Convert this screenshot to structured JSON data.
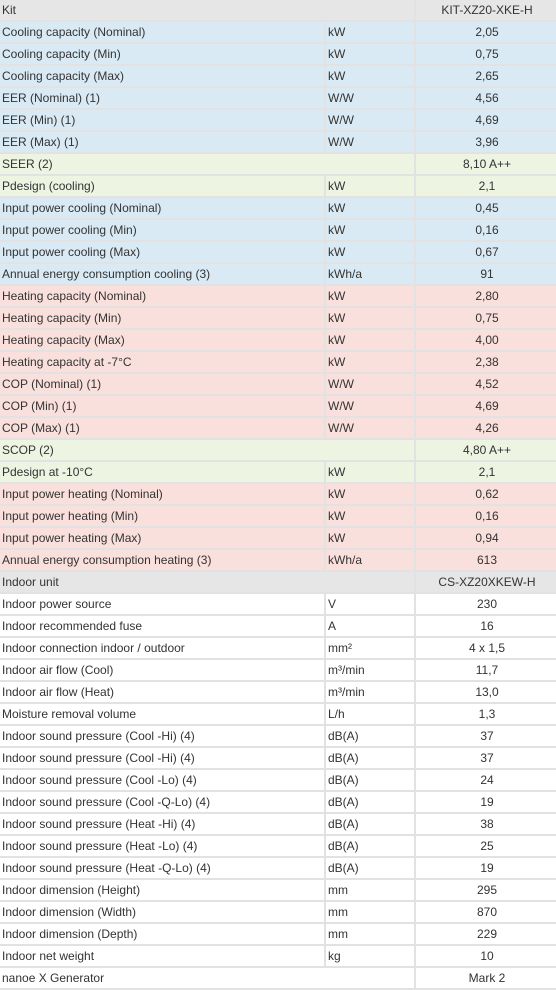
{
  "table": {
    "rows": [
      {
        "label": "Kit",
        "value": "KIT-XZ20-XKE-H",
        "background": "#e6e6e6"
      },
      {
        "label": "Cooling capacity (Nominal)",
        "unit": "kW",
        "value": "2,05",
        "background": "#d9eaf4"
      },
      {
        "label": "Cooling capacity (Min)",
        "unit": "kW",
        "value": "0,75",
        "background": "#d9eaf4"
      },
      {
        "label": "Cooling capacity (Max)",
        "unit": "kW",
        "value": "2,65",
        "background": "#d9eaf4"
      },
      {
        "label": "EER (Nominal) (1)",
        "unit": "W/W",
        "value": "4,56",
        "background": "#d9eaf4"
      },
      {
        "label": "EER (Min) (1)",
        "unit": "W/W",
        "value": "4,69",
        "background": "#d9eaf4"
      },
      {
        "label": "EER (Max) (1)",
        "unit": "W/W",
        "value": "3,96",
        "background": "#d9eaf4"
      },
      {
        "label": "SEER (2)",
        "value": "8,10 A++",
        "background": "#edf4e2"
      },
      {
        "label": "Pdesign (cooling)",
        "unit": "kW",
        "value": "2,1",
        "background": "#edf4e2"
      },
      {
        "label": "Input power cooling (Nominal)",
        "unit": "kW",
        "value": "0,45",
        "background": "#d9eaf4"
      },
      {
        "label": "Input power cooling (Min)",
        "unit": "kW",
        "value": "0,16",
        "background": "#d9eaf4"
      },
      {
        "label": "Input power cooling (Max)",
        "unit": "kW",
        "value": "0,67",
        "background": "#d9eaf4"
      },
      {
        "label": "Annual energy consumption cooling (3)",
        "unit": "kWh/a",
        "value": "91",
        "background": "#d9eaf4"
      },
      {
        "label": "Heating capacity (Nominal)",
        "unit": "kW",
        "value": "2,80",
        "background": "#fae0dc"
      },
      {
        "label": "Heating capacity (Min)",
        "unit": "kW",
        "value": "0,75",
        "background": "#fae0dc"
      },
      {
        "label": "Heating capacity (Max)",
        "unit": "kW",
        "value": "4,00",
        "background": "#fae0dc"
      },
      {
        "label": "Heating capacity at -7°C",
        "unit": "kW",
        "value": "2,38",
        "background": "#fae0dc"
      },
      {
        "label": "COP (Nominal) (1)",
        "unit": "W/W",
        "value": "4,52",
        "background": "#fae0dc"
      },
      {
        "label": "COP (Min) (1)",
        "unit": "W/W",
        "value": "4,69",
        "background": "#fae0dc"
      },
      {
        "label": "COP (Max) (1)",
        "unit": "W/W",
        "value": "4,26",
        "background": "#fae0dc"
      },
      {
        "label": "SCOP (2)",
        "value": "4,80 A++",
        "background": "#edf4e2"
      },
      {
        "label": "Pdesign at -10°C",
        "unit": "kW",
        "value": "2,1",
        "background": "#edf4e2"
      },
      {
        "label": "Input power heating (Nominal)",
        "unit": "kW",
        "value": "0,62",
        "background": "#fae0dc"
      },
      {
        "label": "Input power heating (Min)",
        "unit": "kW",
        "value": "0,16",
        "background": "#fae0dc"
      },
      {
        "label": "Input power heating (Max)",
        "unit": "kW",
        "value": "0,94",
        "background": "#fae0dc"
      },
      {
        "label": "Annual energy consumption heating (3)",
        "unit": "kWh/a",
        "value": "613",
        "background": "#fae0dc"
      },
      {
        "label": "Indoor unit",
        "value": "CS-XZ20XKEW-H",
        "background": "#e6e6e6"
      },
      {
        "label": "Indoor power source",
        "unit": "V",
        "value": "230",
        "background": "#ffffff"
      },
      {
        "label": "Indoor recommended fuse",
        "unit": "A",
        "value": "16",
        "background": "#ffffff"
      },
      {
        "label": "Indoor connection indoor / outdoor",
        "unit": "mm²",
        "value": "4 x 1,5",
        "background": "#ffffff"
      },
      {
        "label": "Indoor air flow (Cool)",
        "unit": "m³/min",
        "value": "11,7",
        "background": "#ffffff"
      },
      {
        "label": "Indoor air flow (Heat)",
        "unit": "m³/min",
        "value": "13,0",
        "background": "#ffffff"
      },
      {
        "label": "Moisture removal volume",
        "unit": "L/h",
        "value": "1,3",
        "background": "#ffffff"
      },
      {
        "label": "Indoor sound pressure (Cool -Hi) (4)",
        "unit": "dB(A)",
        "value": "37",
        "background": "#ffffff"
      },
      {
        "label": "Indoor sound pressure (Cool -Hi) (4)",
        "unit": "dB(A)",
        "value": "37",
        "background": "#ffffff"
      },
      {
        "label": "Indoor sound pressure (Cool -Lo) (4)",
        "unit": "dB(A)",
        "value": "24",
        "background": "#ffffff"
      },
      {
        "label": "Indoor sound pressure (Cool -Q-Lo) (4)",
        "unit": "dB(A)",
        "value": "19",
        "background": "#ffffff"
      },
      {
        "label": "Indoor sound pressure (Heat -Hi) (4)",
        "unit": "dB(A)",
        "value": "38",
        "background": "#ffffff"
      },
      {
        "label": "Indoor sound pressure (Heat -Lo) (4)",
        "unit": "dB(A)",
        "value": "25",
        "background": "#ffffff"
      },
      {
        "label": "Indoor sound pressure (Heat -Q-Lo) (4)",
        "unit": "dB(A)",
        "value": "19",
        "background": "#ffffff"
      },
      {
        "label": "Indoor dimension (Height)",
        "unit": "mm",
        "value": "295",
        "background": "#ffffff"
      },
      {
        "label": "Indoor dimension (Width)",
        "unit": "mm",
        "value": "870",
        "background": "#ffffff"
      },
      {
        "label": "Indoor dimension (Depth)",
        "unit": "mm",
        "value": "229",
        "background": "#ffffff"
      },
      {
        "label": "Indoor net weight",
        "unit": "kg",
        "value": "10",
        "background": "#ffffff"
      },
      {
        "label": "nanoe X Generator",
        "value": "Mark 2",
        "background": "#ffffff"
      }
    ]
  }
}
